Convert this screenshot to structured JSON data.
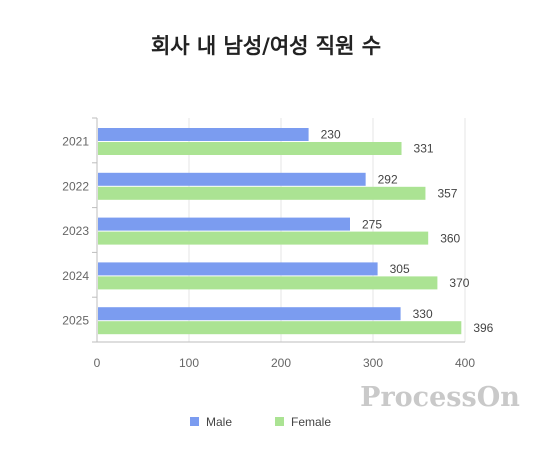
{
  "chart_data": {
    "type": "bar",
    "orientation": "horizontal",
    "title": "회사 내 남성/여성 직원 수",
    "categories": [
      "2021",
      "2022",
      "2023",
      "2024",
      "2025"
    ],
    "series": [
      {
        "name": "Male",
        "values": [
          230,
          292,
          275,
          305,
          330
        ],
        "color": "#7b9cf0"
      },
      {
        "name": "Female",
        "values": [
          331,
          357,
          360,
          370,
          396
        ],
        "color": "#abe393"
      }
    ],
    "xlim": [
      0,
      400
    ],
    "xticks": [
      "0",
      "100",
      "200",
      "300",
      "400"
    ],
    "grid": true,
    "legend_position": "bottom-center"
  },
  "watermark": "ProcessOn"
}
